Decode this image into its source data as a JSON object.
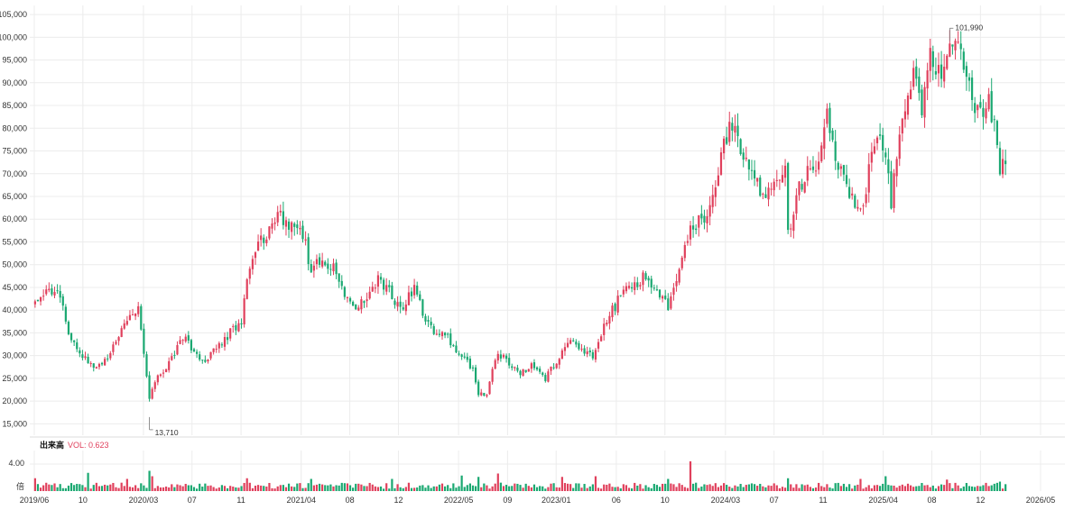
{
  "colors": {
    "up": "#e0405c",
    "down": "#1aa871",
    "grid": "#ececec",
    "axis_text": "#333333",
    "vol_label": "#e0405c"
  },
  "chart_data": [
    {
      "type": "candlestick",
      "title": "",
      "xlabel": "",
      "ylabel": "",
      "ylim": [
        12500,
        107000
      ],
      "y_ticks": [
        "105,000",
        "100,000",
        "95,000",
        "90,000",
        "85,000",
        "80,000",
        "75,000",
        "70,000",
        "65,000",
        "60,000",
        "55,000",
        "50,000",
        "45,000",
        "40,000",
        "35,000",
        "30,000",
        "25,000",
        "20,000",
        "15,000"
      ],
      "grid": true,
      "x_range": [
        "2019-06-01",
        "2026-06-01"
      ],
      "close_path": [
        [
          "2019-06-03",
          41500
        ],
        [
          "2019-07-01",
          45000
        ],
        [
          "2019-08-05",
          43500
        ],
        [
          "2019-08-26",
          34000
        ],
        [
          "2019-09-16",
          32000
        ],
        [
          "2019-10-14",
          28000
        ],
        [
          "2019-11-04",
          27000
        ],
        [
          "2019-12-02",
          30000
        ],
        [
          "2020-01-13",
          37000
        ],
        [
          "2020-02-17",
          41000
        ],
        [
          "2020-03-16",
          21000
        ],
        [
          "2020-04-06",
          25000
        ],
        [
          "2020-05-04",
          28000
        ],
        [
          "2020-06-08",
          34000
        ],
        [
          "2020-07-06",
          31000
        ],
        [
          "2020-08-03",
          29000
        ],
        [
          "2020-08-31",
          32000
        ],
        [
          "2020-10-05",
          35000
        ],
        [
          "2020-11-02",
          37000
        ],
        [
          "2020-11-16",
          48000
        ],
        [
          "2020-12-07",
          53000
        ],
        [
          "2021-01-11",
          58000
        ],
        [
          "2021-02-08",
          61000
        ],
        [
          "2021-03-08",
          58000
        ],
        [
          "2021-04-05",
          57000
        ],
        [
          "2021-04-26",
          48000
        ],
        [
          "2021-05-17",
          51000
        ],
        [
          "2021-06-14",
          50000
        ],
        [
          "2021-07-19",
          44000
        ],
        [
          "2021-08-16",
          40000
        ],
        [
          "2021-09-13",
          43000
        ],
        [
          "2021-10-11",
          47000
        ],
        [
          "2021-11-08",
          44000
        ],
        [
          "2021-12-06",
          40000
        ],
        [
          "2022-01-10",
          45000
        ],
        [
          "2022-02-07",
          38000
        ],
        [
          "2022-03-07",
          35000
        ],
        [
          "2022-04-04",
          34000
        ],
        [
          "2022-05-09",
          30000
        ],
        [
          "2022-06-06",
          27000
        ],
        [
          "2022-06-20",
          21000
        ],
        [
          "2022-07-11",
          22000
        ],
        [
          "2022-08-08",
          31000
        ],
        [
          "2022-09-05",
          28000
        ],
        [
          "2022-10-03",
          26000
        ],
        [
          "2022-11-07",
          28000
        ],
        [
          "2022-12-05",
          25000
        ],
        [
          "2023-01-09",
          30000
        ],
        [
          "2023-02-06",
          34000
        ],
        [
          "2023-03-06",
          31000
        ],
        [
          "2023-04-03",
          30000
        ],
        [
          "2023-05-08",
          38000
        ],
        [
          "2023-06-05",
          42000
        ],
        [
          "2023-07-03",
          45000
        ],
        [
          "2023-08-07",
          47000
        ],
        [
          "2023-09-04",
          44000
        ],
        [
          "2023-10-09",
          41000
        ],
        [
          "2023-11-06",
          50000
        ],
        [
          "2023-12-04",
          58000
        ],
        [
          "2024-01-08",
          60000
        ],
        [
          "2024-02-05",
          67000
        ],
        [
          "2024-02-26",
          78000
        ],
        [
          "2024-03-18",
          80000
        ],
        [
          "2024-04-15",
          74000
        ],
        [
          "2024-05-13",
          68000
        ],
        [
          "2024-06-10",
          66000
        ],
        [
          "2024-07-08",
          70000
        ],
        [
          "2024-07-29",
          71000
        ],
        [
          "2024-08-05",
          57000
        ],
        [
          "2024-08-26",
          65000
        ],
        [
          "2024-09-23",
          72000
        ],
        [
          "2024-10-21",
          73000
        ],
        [
          "2024-11-11",
          84000
        ],
        [
          "2024-12-02",
          73000
        ],
        [
          "2025-01-06",
          66000
        ],
        [
          "2025-02-03",
          62000
        ],
        [
          "2025-02-24",
          70000
        ],
        [
          "2025-03-17",
          79000
        ],
        [
          "2025-04-07",
          74000
        ],
        [
          "2025-04-21",
          64000
        ],
        [
          "2025-05-05",
          75000
        ],
        [
          "2025-05-26",
          84000
        ],
        [
          "2025-06-16",
          91000
        ],
        [
          "2025-07-07",
          85000
        ],
        [
          "2025-07-28",
          96000
        ],
        [
          "2025-08-18",
          92000
        ],
        [
          "2025-09-08",
          95000
        ],
        [
          "2025-09-29",
          100000
        ],
        [
          "2025-10-20",
          93000
        ],
        [
          "2025-11-10",
          86000
        ],
        [
          "2025-12-01",
          83000
        ],
        [
          "2025-12-22",
          86000
        ],
        [
          "2026-01-05",
          80000
        ],
        [
          "2026-01-19",
          71000
        ],
        [
          "2026-02-02",
          72000
        ]
      ],
      "annotations": [
        {
          "label": "101,990",
          "date": "2025-09-15",
          "value": 101990,
          "side": "right"
        },
        {
          "label": "13,710",
          "date": "2020-03-16",
          "value": 13710,
          "side": "right"
        }
      ]
    },
    {
      "type": "bar",
      "title": "出来高",
      "value_label": "VOL: 0.623",
      "ylabel": "倍",
      "ylim": [
        0,
        6
      ],
      "y_ticks": [
        "4.00"
      ],
      "spikes": [
        [
          "2019-06-05",
          1.9
        ],
        [
          "2019-10-14",
          2.7
        ],
        [
          "2020-01-20",
          1.8
        ],
        [
          "2020-03-16",
          3.0
        ],
        [
          "2020-03-23",
          2.2
        ],
        [
          "2020-11-16",
          1.9
        ],
        [
          "2021-04-26",
          1.8
        ],
        [
          "2021-11-15",
          1.8
        ],
        [
          "2022-05-09",
          2.3
        ],
        [
          "2022-06-20",
          2.1
        ],
        [
          "2022-08-08",
          2.6
        ],
        [
          "2023-01-16",
          2.1
        ],
        [
          "2023-04-10",
          2.2
        ],
        [
          "2023-10-09",
          1.8
        ],
        [
          "2023-12-04",
          4.4
        ],
        [
          "2024-08-05",
          1.9
        ],
        [
          "2025-02-03",
          1.8
        ],
        [
          "2025-04-07",
          2.2
        ],
        [
          "2025-09-08",
          1.7
        ],
        [
          "2026-01-19",
          1.4
        ]
      ]
    }
  ],
  "x_axis": {
    "ticks": [
      "2019/06",
      "10",
      "2020/03",
      "07",
      "11",
      "2021/04",
      "08",
      "12",
      "2022/05",
      "09",
      "2023/01",
      "06",
      "10",
      "2024/03",
      "07",
      "11",
      "2025/04",
      "08",
      "12",
      "2026/05"
    ],
    "tick_dates": [
      "2019-06-01",
      "2019-10-01",
      "2020-03-01",
      "2020-07-01",
      "2020-11-01",
      "2021-04-01",
      "2021-08-01",
      "2021-12-01",
      "2022-05-01",
      "2022-09-01",
      "2023-01-01",
      "2023-06-01",
      "2023-10-01",
      "2024-03-01",
      "2024-07-01",
      "2024-11-01",
      "2025-04-01",
      "2025-08-01",
      "2025-12-01",
      "2026-05-01"
    ]
  }
}
